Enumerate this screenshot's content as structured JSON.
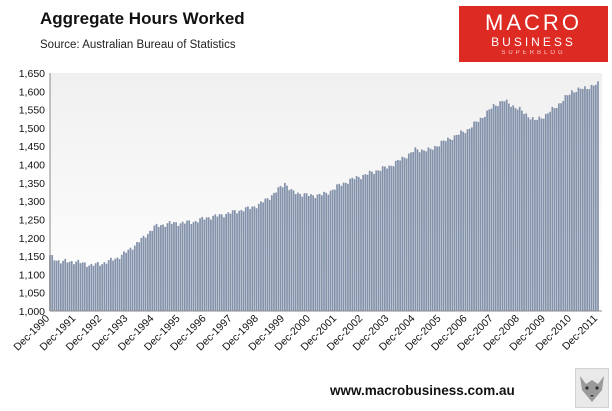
{
  "header": {
    "title": "Aggregate Hours Worked",
    "subtitle": "Source: Australian Bureau of Statistics"
  },
  "logo": {
    "line1": "MACRO",
    "line2": "BUSINESS",
    "line3": "SUPERBLOG"
  },
  "footer": {
    "website": "www.macrobusiness.com.au"
  },
  "colors": {
    "bar": "#8392aa",
    "plot_bg_top": "#f2f2f2",
    "plot_bg_bottom": "#ffffff",
    "logo_red": "#dd2a22"
  },
  "chart_data": {
    "type": "bar",
    "ylim": [
      1000,
      1650
    ],
    "yticks": [
      1000,
      1050,
      1100,
      1150,
      1200,
      1250,
      1300,
      1350,
      1400,
      1450,
      1500,
      1550,
      1600,
      1650
    ],
    "ytick_labels": [
      "1,000",
      "1,050",
      "1,100",
      "1,150",
      "1,200",
      "1,250",
      "1,300",
      "1,350",
      "1,400",
      "1,450",
      "1,500",
      "1,550",
      "1,600",
      "1,650"
    ],
    "categories": [
      "Dec-1990",
      "Dec-1991",
      "Dec-1992",
      "Dec-1993",
      "Dec-1994",
      "Dec-1995",
      "Dec-1996",
      "Dec-1997",
      "Dec-1998",
      "Dec-1999",
      "Dec-2000",
      "Dec-2001",
      "Dec-2002",
      "Dec-2003",
      "Dec-2004",
      "Dec-2005",
      "Dec-2006",
      "Dec-2007",
      "Dec-2008",
      "Dec-2009",
      "Dec-2010",
      "Dec-2011"
    ],
    "frequency": "monthly",
    "trend": [
      [
        1990.92,
        1150
      ],
      [
        1991.3,
        1135
      ],
      [
        1991.92,
        1135
      ],
      [
        1992.5,
        1125
      ],
      [
        1992.92,
        1130
      ],
      [
        1993.5,
        1145
      ],
      [
        1993.92,
        1165
      ],
      [
        1994.5,
        1200
      ],
      [
        1994.92,
        1230
      ],
      [
        1995.5,
        1240
      ],
      [
        1995.92,
        1240
      ],
      [
        1996.5,
        1245
      ],
      [
        1996.92,
        1255
      ],
      [
        1997.5,
        1262
      ],
      [
        1997.92,
        1270
      ],
      [
        1998.5,
        1280
      ],
      [
        1998.92,
        1290
      ],
      [
        1999.5,
        1320
      ],
      [
        1999.92,
        1350
      ],
      [
        2000.2,
        1325
      ],
      [
        2000.92,
        1315
      ],
      [
        2001.5,
        1320
      ],
      [
        2001.92,
        1340
      ],
      [
        2002.5,
        1360
      ],
      [
        2002.92,
        1370
      ],
      [
        2003.5,
        1385
      ],
      [
        2003.92,
        1395
      ],
      [
        2004.5,
        1420
      ],
      [
        2004.92,
        1440
      ],
      [
        2005.5,
        1440
      ],
      [
        2005.92,
        1460
      ],
      [
        2006.5,
        1480
      ],
      [
        2006.92,
        1495
      ],
      [
        2007.5,
        1530
      ],
      [
        2007.92,
        1560
      ],
      [
        2008.3,
        1575
      ],
      [
        2008.92,
        1550
      ],
      [
        2009.5,
        1520
      ],
      [
        2009.92,
        1535
      ],
      [
        2010.5,
        1570
      ],
      [
        2010.92,
        1600
      ],
      [
        2011.5,
        1610
      ],
      [
        2011.92,
        1620
      ]
    ]
  }
}
